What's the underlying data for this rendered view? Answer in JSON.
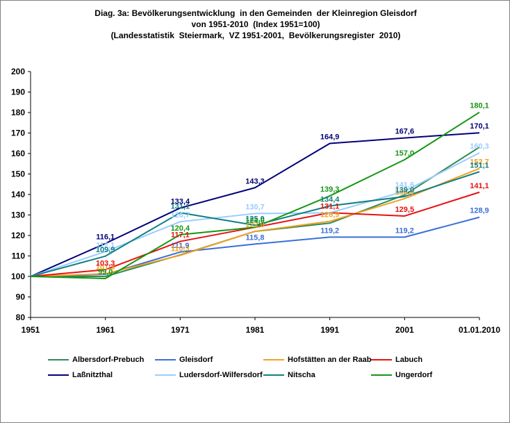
{
  "title": {
    "line1": "Diag. 3a: Bevölkerungsentwicklung  in den Gemeinden  der Kleinregion Gleisdorf",
    "line2": "von 1951-2010  (Index 1951=100)",
    "line3": "(Landesstatistik  Steiermark,  VZ 1951-2001,  Bevölkerungsregister  2010)"
  },
  "chart_data": {
    "type": "line",
    "categories": [
      "1951",
      "1961",
      "1971",
      "1981",
      "1991",
      "2001",
      "01.01.2010"
    ],
    "ylim": [
      80,
      200
    ],
    "yticks": [
      80,
      90,
      100,
      110,
      120,
      130,
      140,
      150,
      160,
      170,
      180,
      190,
      200
    ],
    "grid": false,
    "legend": "bottom",
    "series": [
      {
        "name": "Albersdorf-Prebuch",
        "color": "#2e8b57",
        "values": [
          100,
          100.0,
          110.5,
          122.0,
          126.0,
          139.8,
          163.1
        ],
        "labels": []
      },
      {
        "name": "Gleisdorf",
        "color": "#3a6fd8",
        "values": [
          100,
          101.0,
          111.9,
          115.8,
          119.2,
          119.2,
          128.9
        ],
        "labels": [
          null,
          null,
          "111,9",
          "115,8",
          "119,2",
          "119,2",
          "128,9"
        ]
      },
      {
        "name": "Hofstätten an der Raab",
        "color": "#f0a020",
        "values": [
          100,
          101.3,
          110.3,
          122.0,
          126.9,
          138.0,
          152.7
        ],
        "labels": [
          null,
          "101,3",
          "110,3",
          "122,0",
          "126,9",
          "138,0",
          "152,7"
        ]
      },
      {
        "name": "Labuch",
        "color": "#e81010",
        "values": [
          100,
          103.3,
          117.1,
          124.0,
          131.1,
          129.5,
          141.1
        ],
        "labels": [
          null,
          "103,3",
          "117,1",
          null,
          "131,1",
          "129,5",
          "141,1"
        ]
      },
      {
        "name": "Laßnitzthal",
        "color": "#00007a",
        "values": [
          100,
          116.1,
          133.4,
          143.3,
          164.9,
          167.6,
          170.1
        ],
        "labels": [
          null,
          "116,1",
          "133,4",
          "143,3",
          "164,9",
          "167,6",
          "170,1"
        ]
      },
      {
        "name": "Ludersdorf-Wilfersdorf",
        "color": "#99ccff",
        "values": [
          100,
          112.1,
          126.7,
          130.7,
          131.0,
          141.6,
          160.3
        ],
        "labels": [
          null,
          "112,1",
          "126,7",
          "130,7",
          null,
          "141,6",
          "160,3"
        ]
      },
      {
        "name": "Nitscha",
        "color": "#108080",
        "values": [
          100,
          109.9,
          131.1,
          125.0,
          134.4,
          139.0,
          151.1
        ],
        "labels": [
          null,
          "109,9",
          "131,1",
          "125,0",
          "134,4",
          "139,0",
          "151,1"
        ]
      },
      {
        "name": "Ungerdorf",
        "color": "#149614",
        "values": [
          100,
          99.0,
          120.4,
          124.0,
          139.3,
          157.0,
          180.1
        ],
        "labels": [
          null,
          "99,0",
          "120,4",
          "124,0",
          "139,3",
          "157,0",
          "180,1"
        ]
      }
    ]
  }
}
